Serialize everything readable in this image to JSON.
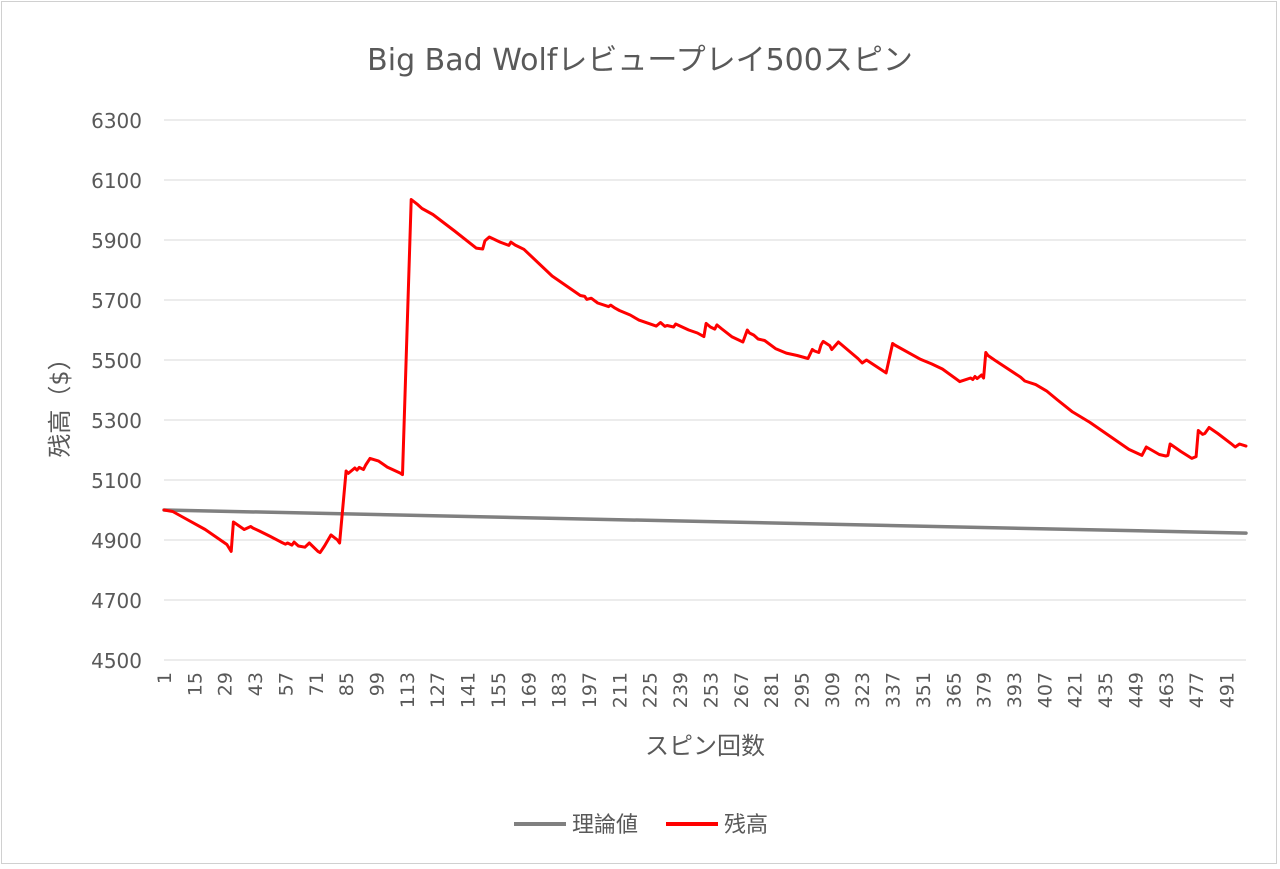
{
  "chart_data": {
    "type": "line",
    "title": "Big Bad Wolfレビュープレイ500スピン",
    "xlabel": "スピン回数",
    "ylabel": "残高（$）",
    "ylim": [
      4500,
      6300
    ],
    "yticks": [
      4500,
      4700,
      4900,
      5100,
      5300,
      5500,
      5700,
      5900,
      6100,
      6300
    ],
    "xlim": [
      1,
      500
    ],
    "xticks": [
      1,
      15,
      29,
      43,
      57,
      71,
      85,
      99,
      113,
      127,
      141,
      155,
      169,
      183,
      197,
      211,
      225,
      239,
      253,
      267,
      281,
      295,
      309,
      323,
      337,
      351,
      365,
      379,
      393,
      407,
      421,
      435,
      449,
      463,
      477,
      491
    ],
    "grid": true,
    "legend_position": "bottom",
    "series": [
      {
        "name": "理論値",
        "color": "#808080",
        "x": [
          1,
          500
        ],
        "y": [
          5000,
          4923
        ]
      },
      {
        "name": "残高",
        "color": "#ff0000",
        "x": [
          1,
          5,
          10,
          20,
          30,
          32,
          33,
          38,
          41,
          42,
          45,
          50,
          55,
          57,
          58,
          60,
          61,
          63,
          66,
          68,
          72,
          73,
          75,
          78,
          81,
          82,
          85,
          86,
          89,
          90,
          91,
          93,
          94,
          96,
          100,
          104,
          110,
          111,
          115,
          118,
          120,
          125,
          135,
          145,
          148,
          149,
          151,
          156,
          160,
          161,
          163,
          167,
          180,
          193,
          195,
          196,
          198,
          201,
          206,
          207,
          209,
          211,
          216,
          220,
          226,
          228,
          230,
          232,
          233,
          236,
          237,
          240,
          243,
          247,
          250,
          251,
          253,
          255,
          256,
          258,
          263,
          268,
          270,
          271,
          273,
          275,
          278,
          283,
          288,
          293,
          298,
          300,
          301,
          303,
          304,
          305,
          308,
          309,
          312,
          321,
          323,
          325,
          334,
          337,
          338,
          345,
          350,
          355,
          360,
          368,
          373,
          374,
          375,
          376,
          378,
          379,
          380,
          381,
          384,
          396,
          398,
          403,
          408,
          413,
          420,
          428,
          434,
          446,
          452,
          454,
          460,
          463,
          464,
          465,
          470,
          475,
          477,
          478,
          480,
          481,
          483,
          487,
          493,
          495,
          497,
          500
        ],
        "y": [
          5000,
          4995,
          4975,
          4935,
          4885,
          4862,
          4960,
          4935,
          4945,
          4940,
          4930,
          4912,
          4893,
          4886,
          4890,
          4883,
          4893,
          4880,
          4876,
          4890,
          4862,
          4858,
          4880,
          4917,
          4900,
          4890,
          5130,
          5122,
          5140,
          5133,
          5142,
          5135,
          5150,
          5172,
          5163,
          5143,
          5123,
          5118,
          6035,
          6018,
          6005,
          5985,
          5930,
          5873,
          5870,
          5897,
          5910,
          5893,
          5882,
          5893,
          5883,
          5869,
          5780,
          5715,
          5712,
          5702,
          5706,
          5690,
          5678,
          5683,
          5673,
          5665,
          5650,
          5633,
          5618,
          5613,
          5625,
          5612,
          5615,
          5610,
          5620,
          5610,
          5600,
          5590,
          5578,
          5622,
          5610,
          5603,
          5617,
          5605,
          5577,
          5560,
          5600,
          5590,
          5583,
          5570,
          5565,
          5538,
          5523,
          5515,
          5505,
          5535,
          5530,
          5525,
          5550,
          5562,
          5548,
          5535,
          5560,
          5505,
          5490,
          5500,
          5457,
          5555,
          5550,
          5522,
          5502,
          5487,
          5470,
          5428,
          5440,
          5435,
          5445,
          5438,
          5450,
          5440,
          5525,
          5515,
          5500,
          5443,
          5430,
          5418,
          5397,
          5367,
          5327,
          5292,
          5262,
          5202,
          5182,
          5210,
          5185,
          5180,
          5182,
          5220,
          5195,
          5172,
          5178,
          5265,
          5252,
          5255,
          5275,
          5255,
          5222,
          5210,
          5220,
          5213
        ]
      }
    ]
  }
}
